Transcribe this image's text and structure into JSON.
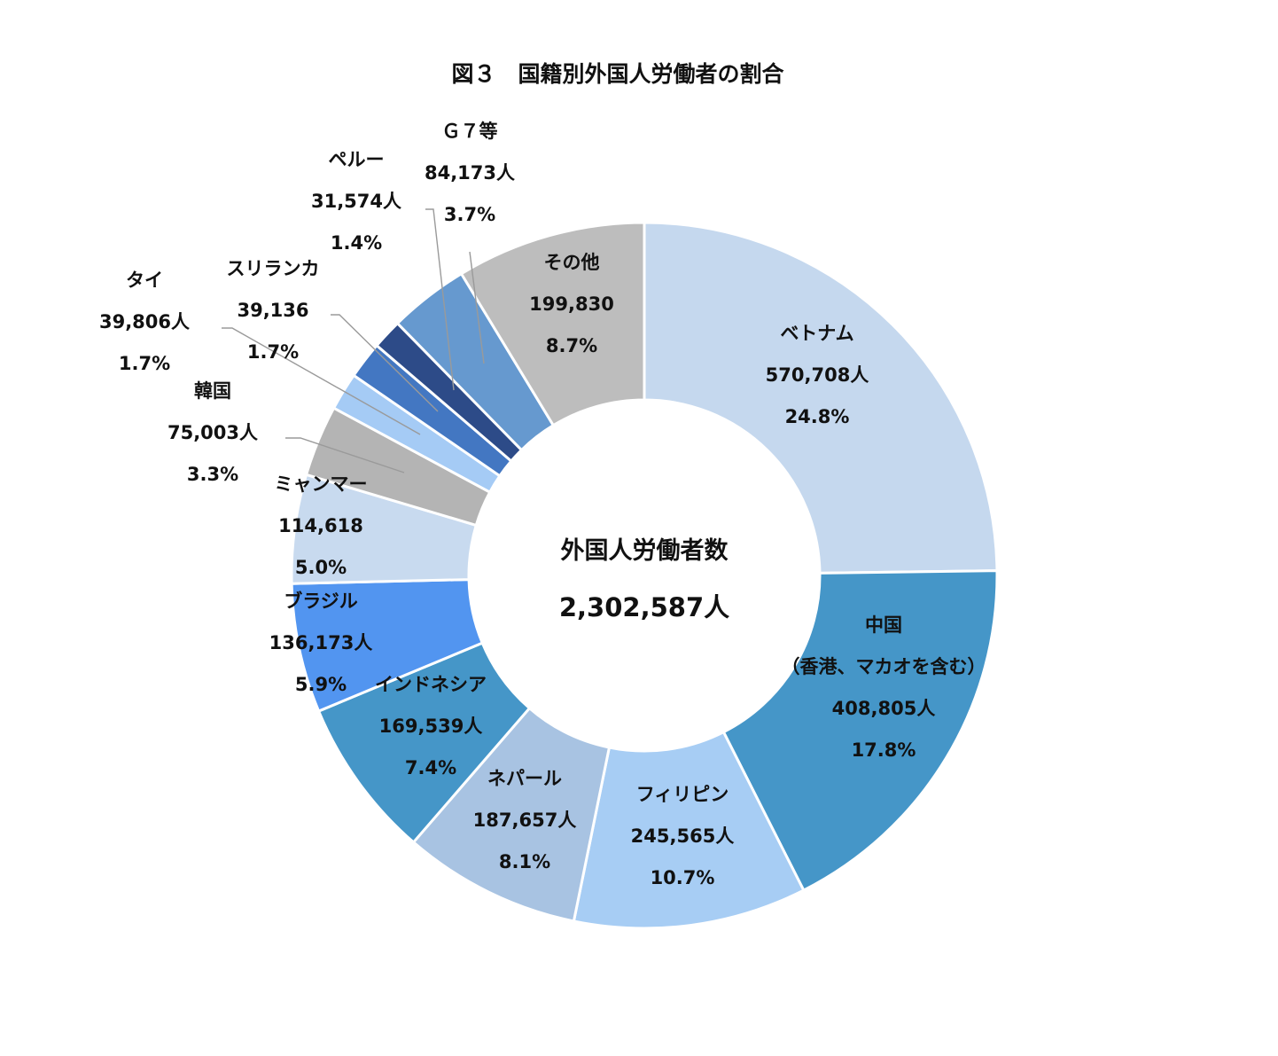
{
  "chart_data": {
    "type": "pie",
    "title": "図３　国籍別外国人労働者の割合",
    "center": {
      "title": "外国人労働者数",
      "total": "2,302,587人"
    },
    "slices": [
      {
        "lines": [
          "ベトナム",
          "570,708人",
          "24.8%"
        ],
        "value": 570708,
        "percent": 24.8,
        "color": "#c5d8ee"
      },
      {
        "lines": [
          "中国",
          "（香港、マカオを含む）",
          "408,805人",
          "17.8%"
        ],
        "value": 408805,
        "percent": 17.8,
        "color": "#4596c8"
      },
      {
        "lines": [
          "フィリピン",
          "245,565人",
          "10.7%"
        ],
        "value": 245565,
        "percent": 10.7,
        "color": "#a7cdf4"
      },
      {
        "lines": [
          "ネパール",
          "187,657人",
          "8.1%"
        ],
        "value": 187657,
        "percent": 8.1,
        "color": "#a8c3e2"
      },
      {
        "lines": [
          "インドネシア",
          "169,539人",
          "7.4%"
        ],
        "value": 169539,
        "percent": 7.4,
        "color": "#4596c8"
      },
      {
        "lines": [
          "ブラジル",
          "136,173人",
          "5.9%"
        ],
        "value": 136173,
        "percent": 5.9,
        "color": "#5295f0"
      },
      {
        "lines": [
          "ミャンマー",
          "114,618",
          "5.0%"
        ],
        "value": 114618,
        "percent": 5.0,
        "color": "#c8daef"
      },
      {
        "lines": [
          "韓国",
          "75,003人",
          "3.3%"
        ],
        "value": 75003,
        "percent": 3.3,
        "color": "#b4b4b4"
      },
      {
        "lines": [
          "タイ",
          "39,806人",
          "1.7%"
        ],
        "value": 39806,
        "percent": 1.7,
        "color": "#a5cbf5"
      },
      {
        "lines": [
          "スリランカ",
          "39,136",
          "1.7%"
        ],
        "value": 39136,
        "percent": 1.7,
        "color": "#4377c2"
      },
      {
        "lines": [
          "ペルー",
          "31,574人",
          "1.4%"
        ],
        "value": 31574,
        "percent": 1.4,
        "color": "#2d4b88"
      },
      {
        "lines": [
          "Ｇ７等",
          "84,173人",
          "3.7%"
        ],
        "value": 84173,
        "percent": 3.7,
        "color": "#6699cf"
      },
      {
        "lines": [
          "その他",
          "199,830",
          "8.7%"
        ],
        "value": 199830,
        "percent": 8.7,
        "color": "#bdbdbd"
      }
    ]
  }
}
